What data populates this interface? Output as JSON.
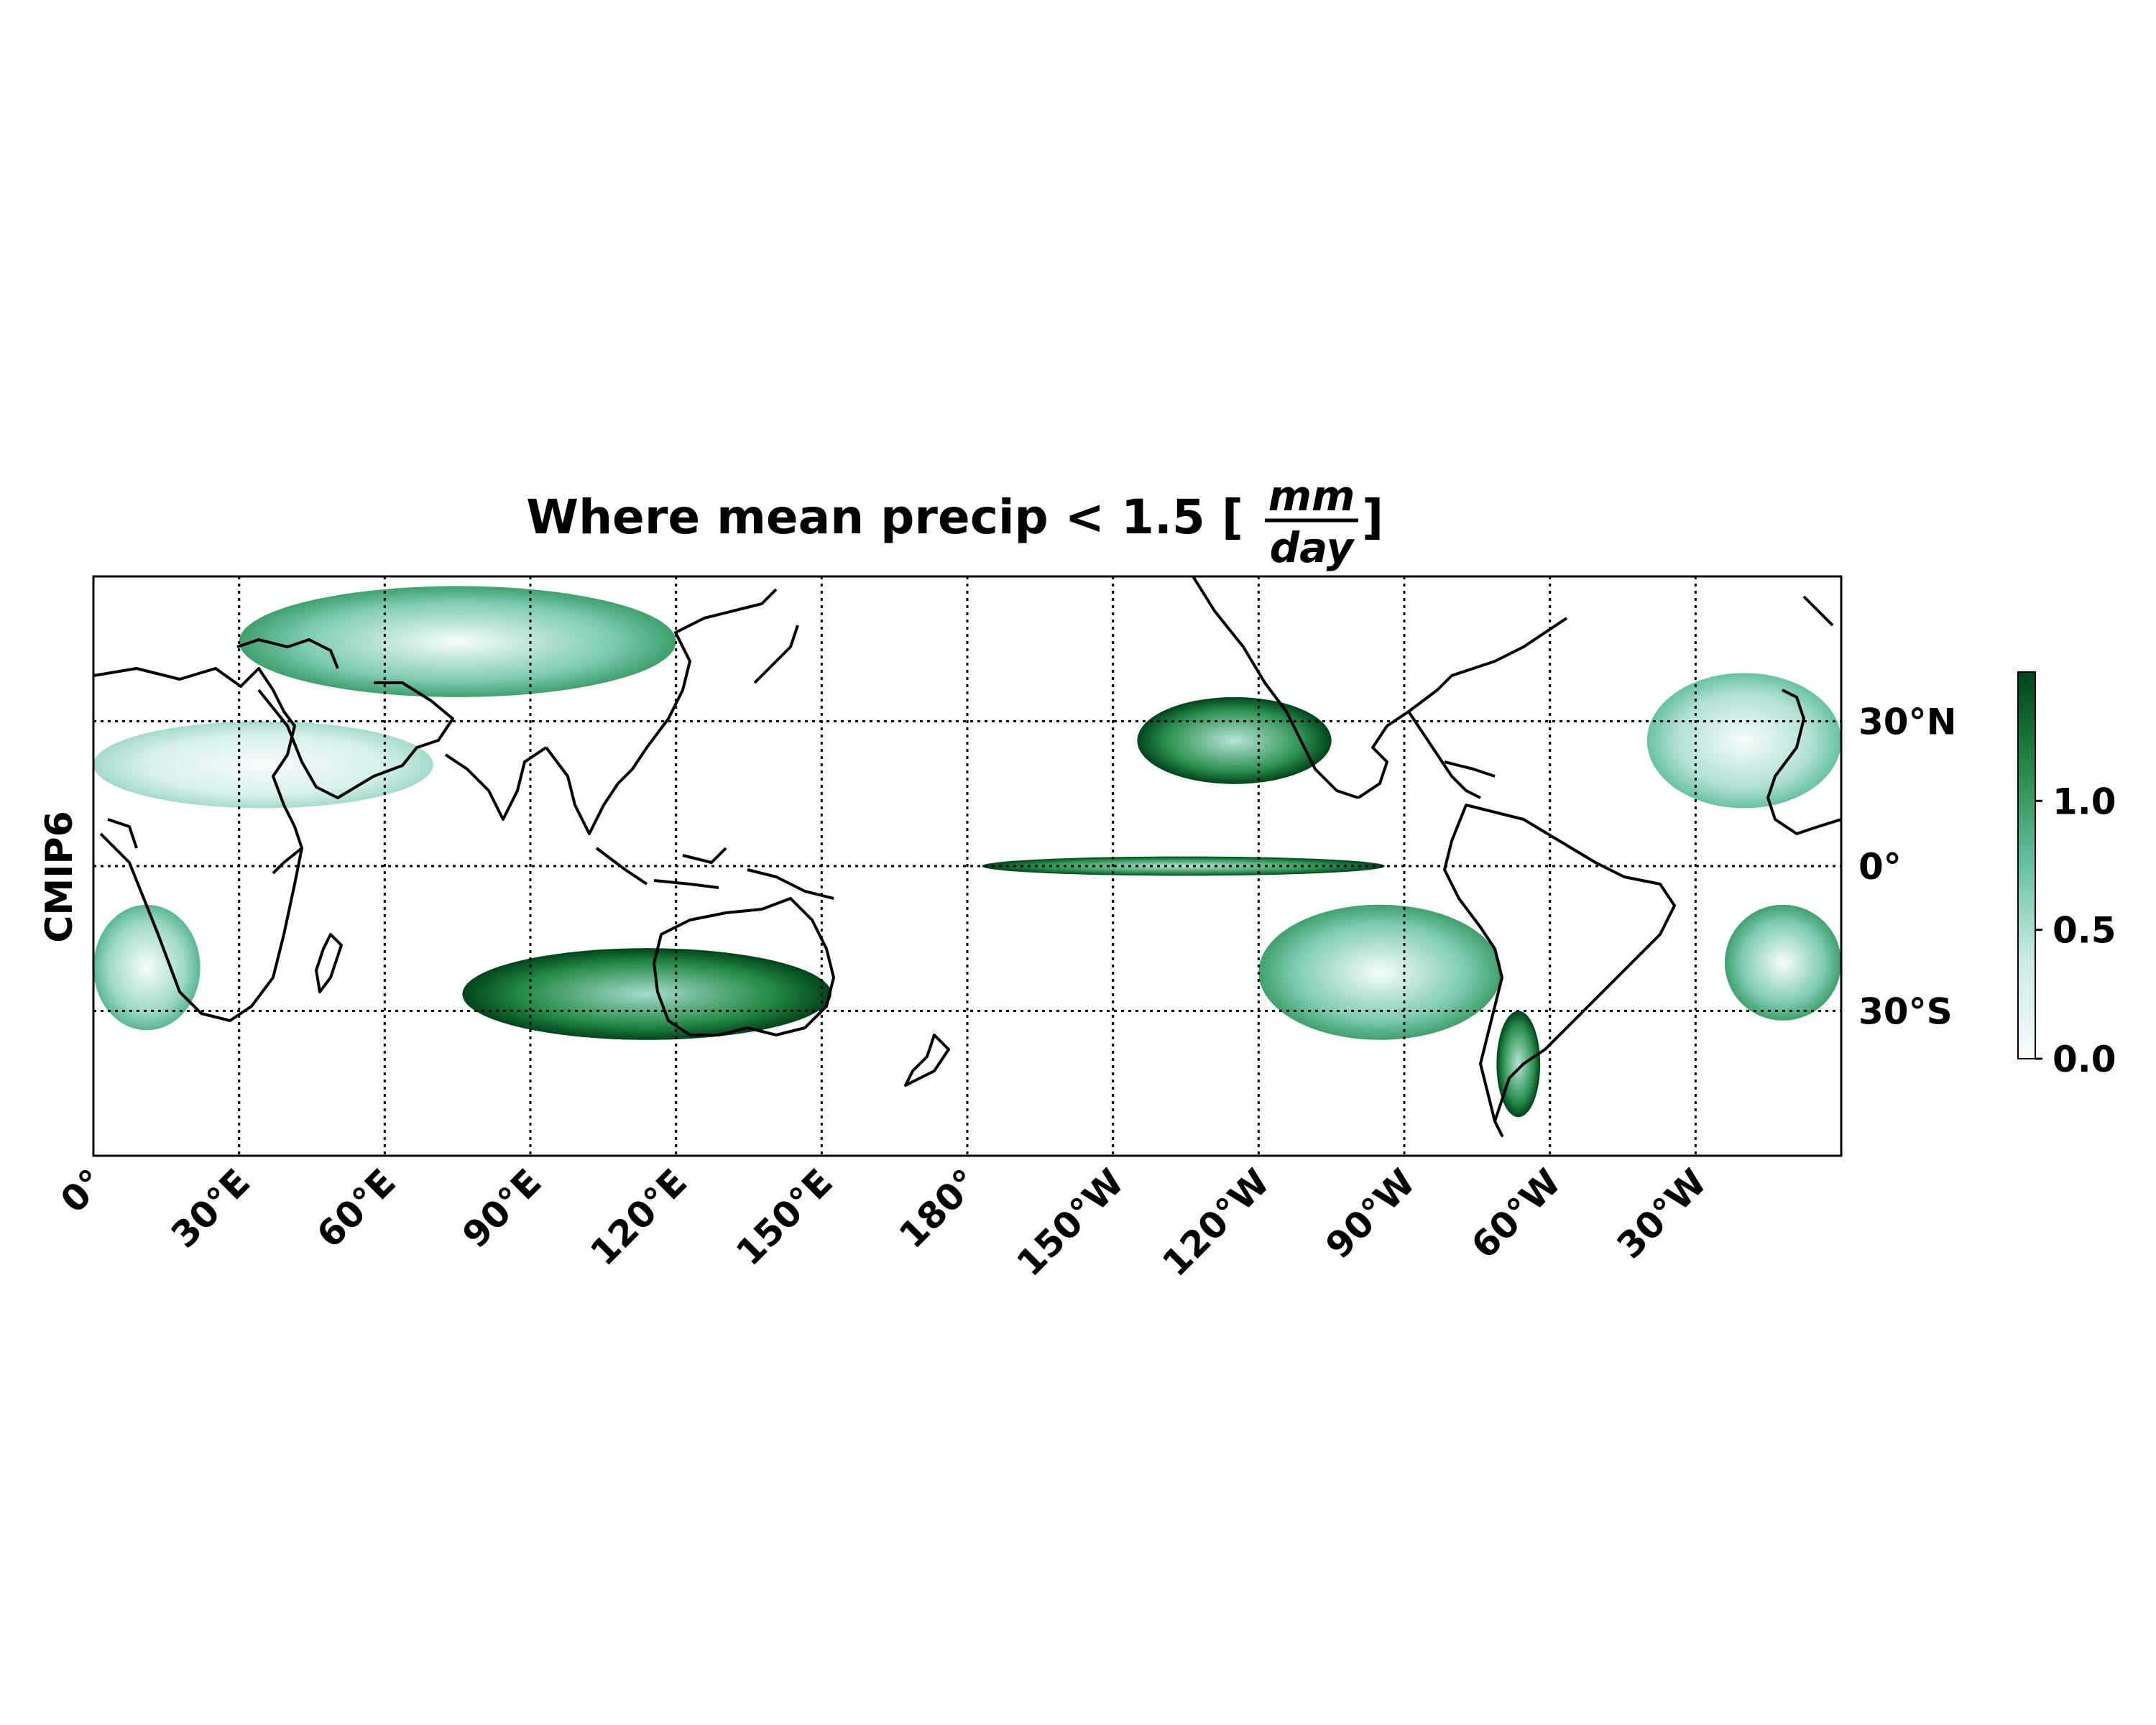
{
  "title": {
    "prefix": "Where mean precip < 1.5 [",
    "numerator": "mm",
    "denominator": "day",
    "suffix": "]"
  },
  "row_label": "CMIP6",
  "map": {
    "projection": "PlateCarree",
    "central_longitude": 180,
    "lon_range_east": [
      0,
      360
    ],
    "lat_range": [
      -60,
      60
    ],
    "x_ticks": [
      {
        "lon": 0,
        "label": "0°"
      },
      {
        "lon": 30,
        "label": "30°E"
      },
      {
        "lon": 60,
        "label": "60°E"
      },
      {
        "lon": 90,
        "label": "90°E"
      },
      {
        "lon": 120,
        "label": "120°E"
      },
      {
        "lon": 150,
        "label": "150°E"
      },
      {
        "lon": 180,
        "label": "180°"
      },
      {
        "lon": 210,
        "label": "150°W"
      },
      {
        "lon": 240,
        "label": "120°W"
      },
      {
        "lon": 270,
        "label": "90°W"
      },
      {
        "lon": 300,
        "label": "60°W"
      },
      {
        "lon": 330,
        "label": "30°W"
      }
    ],
    "y_ticks": [
      {
        "lat": 30,
        "label": "30°N"
      },
      {
        "lat": 0,
        "label": "0°"
      },
      {
        "lat": -30,
        "label": "30°S"
      }
    ],
    "gridlines": "dotted"
  },
  "colorbar": {
    "cmap": "BuGn",
    "range": [
      0.0,
      1.5
    ],
    "ticks": [
      {
        "value": 0.0,
        "label": "0.0"
      },
      {
        "value": 0.5,
        "label": "0.5"
      },
      {
        "value": 1.0,
        "label": "1.0"
      }
    ]
  },
  "colors": {
    "low": "#f7fcfd",
    "mid": "#66c2a4",
    "high": "#00441b"
  },
  "dry_regions": [
    {
      "name": "north-africa-arabia",
      "lon": [
        0,
        70
      ],
      "lat": [
        12,
        30
      ],
      "intensity": 0.25
    },
    {
      "name": "central-asia",
      "lon": [
        30,
        120
      ],
      "lat": [
        35,
        58
      ],
      "intensity": 0.55
    },
    {
      "name": "north-pacific-east",
      "lon": [
        215,
        255
      ],
      "lat": [
        17,
        35
      ],
      "intensity": 0.9
    },
    {
      "name": "north-atlantic-east",
      "lon": [
        320,
        360
      ],
      "lat": [
        12,
        40
      ],
      "intensity": 0.4
    },
    {
      "name": "equatorial-pacific",
      "lon": [
        183,
        266
      ],
      "lat": [
        -2,
        2
      ],
      "intensity": 0.9
    },
    {
      "name": "south-pacific-east",
      "lon": [
        240,
        290
      ],
      "lat": [
        -36,
        -8
      ],
      "intensity": 0.55
    },
    {
      "name": "south-atlantic-east",
      "lon": [
        336,
        360
      ],
      "lat": [
        -32,
        -8
      ],
      "intensity": 0.55
    },
    {
      "name": "south-indian",
      "lon": [
        76,
        152
      ],
      "lat": [
        -36,
        -17
      ],
      "intensity": 0.95
    },
    {
      "name": "southern-africa",
      "lon": [
        0,
        22
      ],
      "lat": [
        -34,
        -8
      ],
      "intensity": 0.45
    },
    {
      "name": "patagonia",
      "lon": [
        289,
        298
      ],
      "lat": [
        -52,
        -30
      ],
      "intensity": 0.9
    }
  ]
}
